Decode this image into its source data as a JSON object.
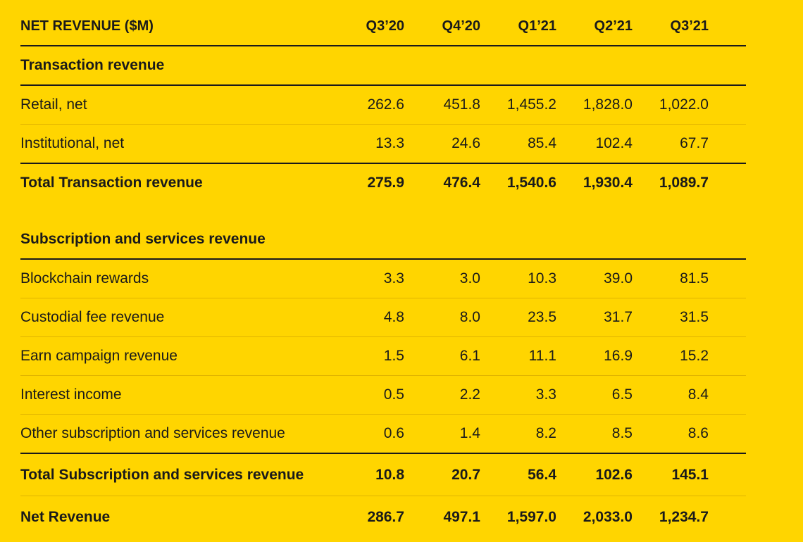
{
  "header": {
    "title": "NET REVENUE ($M)",
    "columns": [
      "Q3’20",
      "Q4’20",
      "Q1’21",
      "Q2’21",
      "Q3’21"
    ]
  },
  "transaction": {
    "section_title": "Transaction revenue",
    "rows": [
      {
        "label": "Retail, net",
        "values": [
          "262.6",
          "451.8",
          "1,455.2",
          "1,828.0",
          "1,022.0"
        ]
      },
      {
        "label": "Institutional, net",
        "values": [
          "13.3",
          "24.6",
          "85.4",
          "102.4",
          "67.7"
        ]
      }
    ],
    "total": {
      "label": "Total Transaction revenue",
      "values": [
        "275.9",
        "476.4",
        "1,540.6",
        "1,930.4",
        "1,089.7"
      ]
    }
  },
  "subscription": {
    "section_title": "Subscription and services revenue",
    "rows": [
      {
        "label": "Blockchain rewards",
        "values": [
          "3.3",
          "3.0",
          "10.3",
          "39.0",
          "81.5"
        ]
      },
      {
        "label": "Custodial fee revenue",
        "values": [
          "4.8",
          "8.0",
          "23.5",
          "31.7",
          "31.5"
        ]
      },
      {
        "label": "Earn campaign revenue",
        "values": [
          "1.5",
          "6.1",
          "11.1",
          "16.9",
          "15.2"
        ]
      },
      {
        "label": "Interest income",
        "values": [
          "0.5",
          "2.2",
          "3.3",
          "6.5",
          "8.4"
        ]
      },
      {
        "label": "Other subscription and services revenue",
        "values": [
          "0.6",
          "1.4",
          "8.2",
          "8.5",
          "8.6"
        ]
      }
    ],
    "total": {
      "label": "Total Subscription and services revenue",
      "values": [
        "10.8",
        "20.7",
        "56.4",
        "102.6",
        "145.1"
      ]
    }
  },
  "net": {
    "label": "Net Revenue",
    "values": [
      "286.7",
      "497.1",
      "1,597.0",
      "2,033.0",
      "1,234.7"
    ]
  }
}
